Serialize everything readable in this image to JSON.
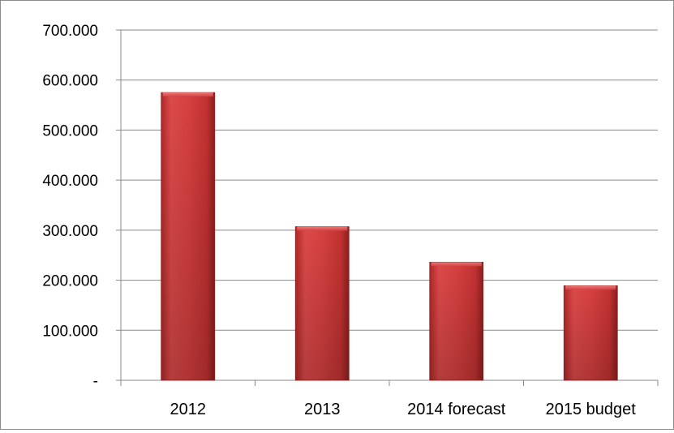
{
  "chart_data": {
    "type": "bar",
    "title": "",
    "xlabel": "",
    "ylabel": "",
    "categories": [
      "2012",
      "2013",
      "2014 forecast",
      "2015 budget"
    ],
    "values": [
      575000,
      307000,
      236000,
      189000
    ],
    "ylim": [
      0,
      700000
    ],
    "yticks": [
      {
        "value": 0,
        "label": "-"
      },
      {
        "value": 100000,
        "label": "100.000"
      },
      {
        "value": 200000,
        "label": "200.000"
      },
      {
        "value": 300000,
        "label": "300.000"
      },
      {
        "value": 400000,
        "label": "400.000"
      },
      {
        "value": 500000,
        "label": "500.000"
      },
      {
        "value": 600000,
        "label": "600.000"
      },
      {
        "value": 700000,
        "label": "700.000"
      }
    ],
    "grid": true,
    "legend": "none",
    "bar_color": "#cc3333"
  }
}
